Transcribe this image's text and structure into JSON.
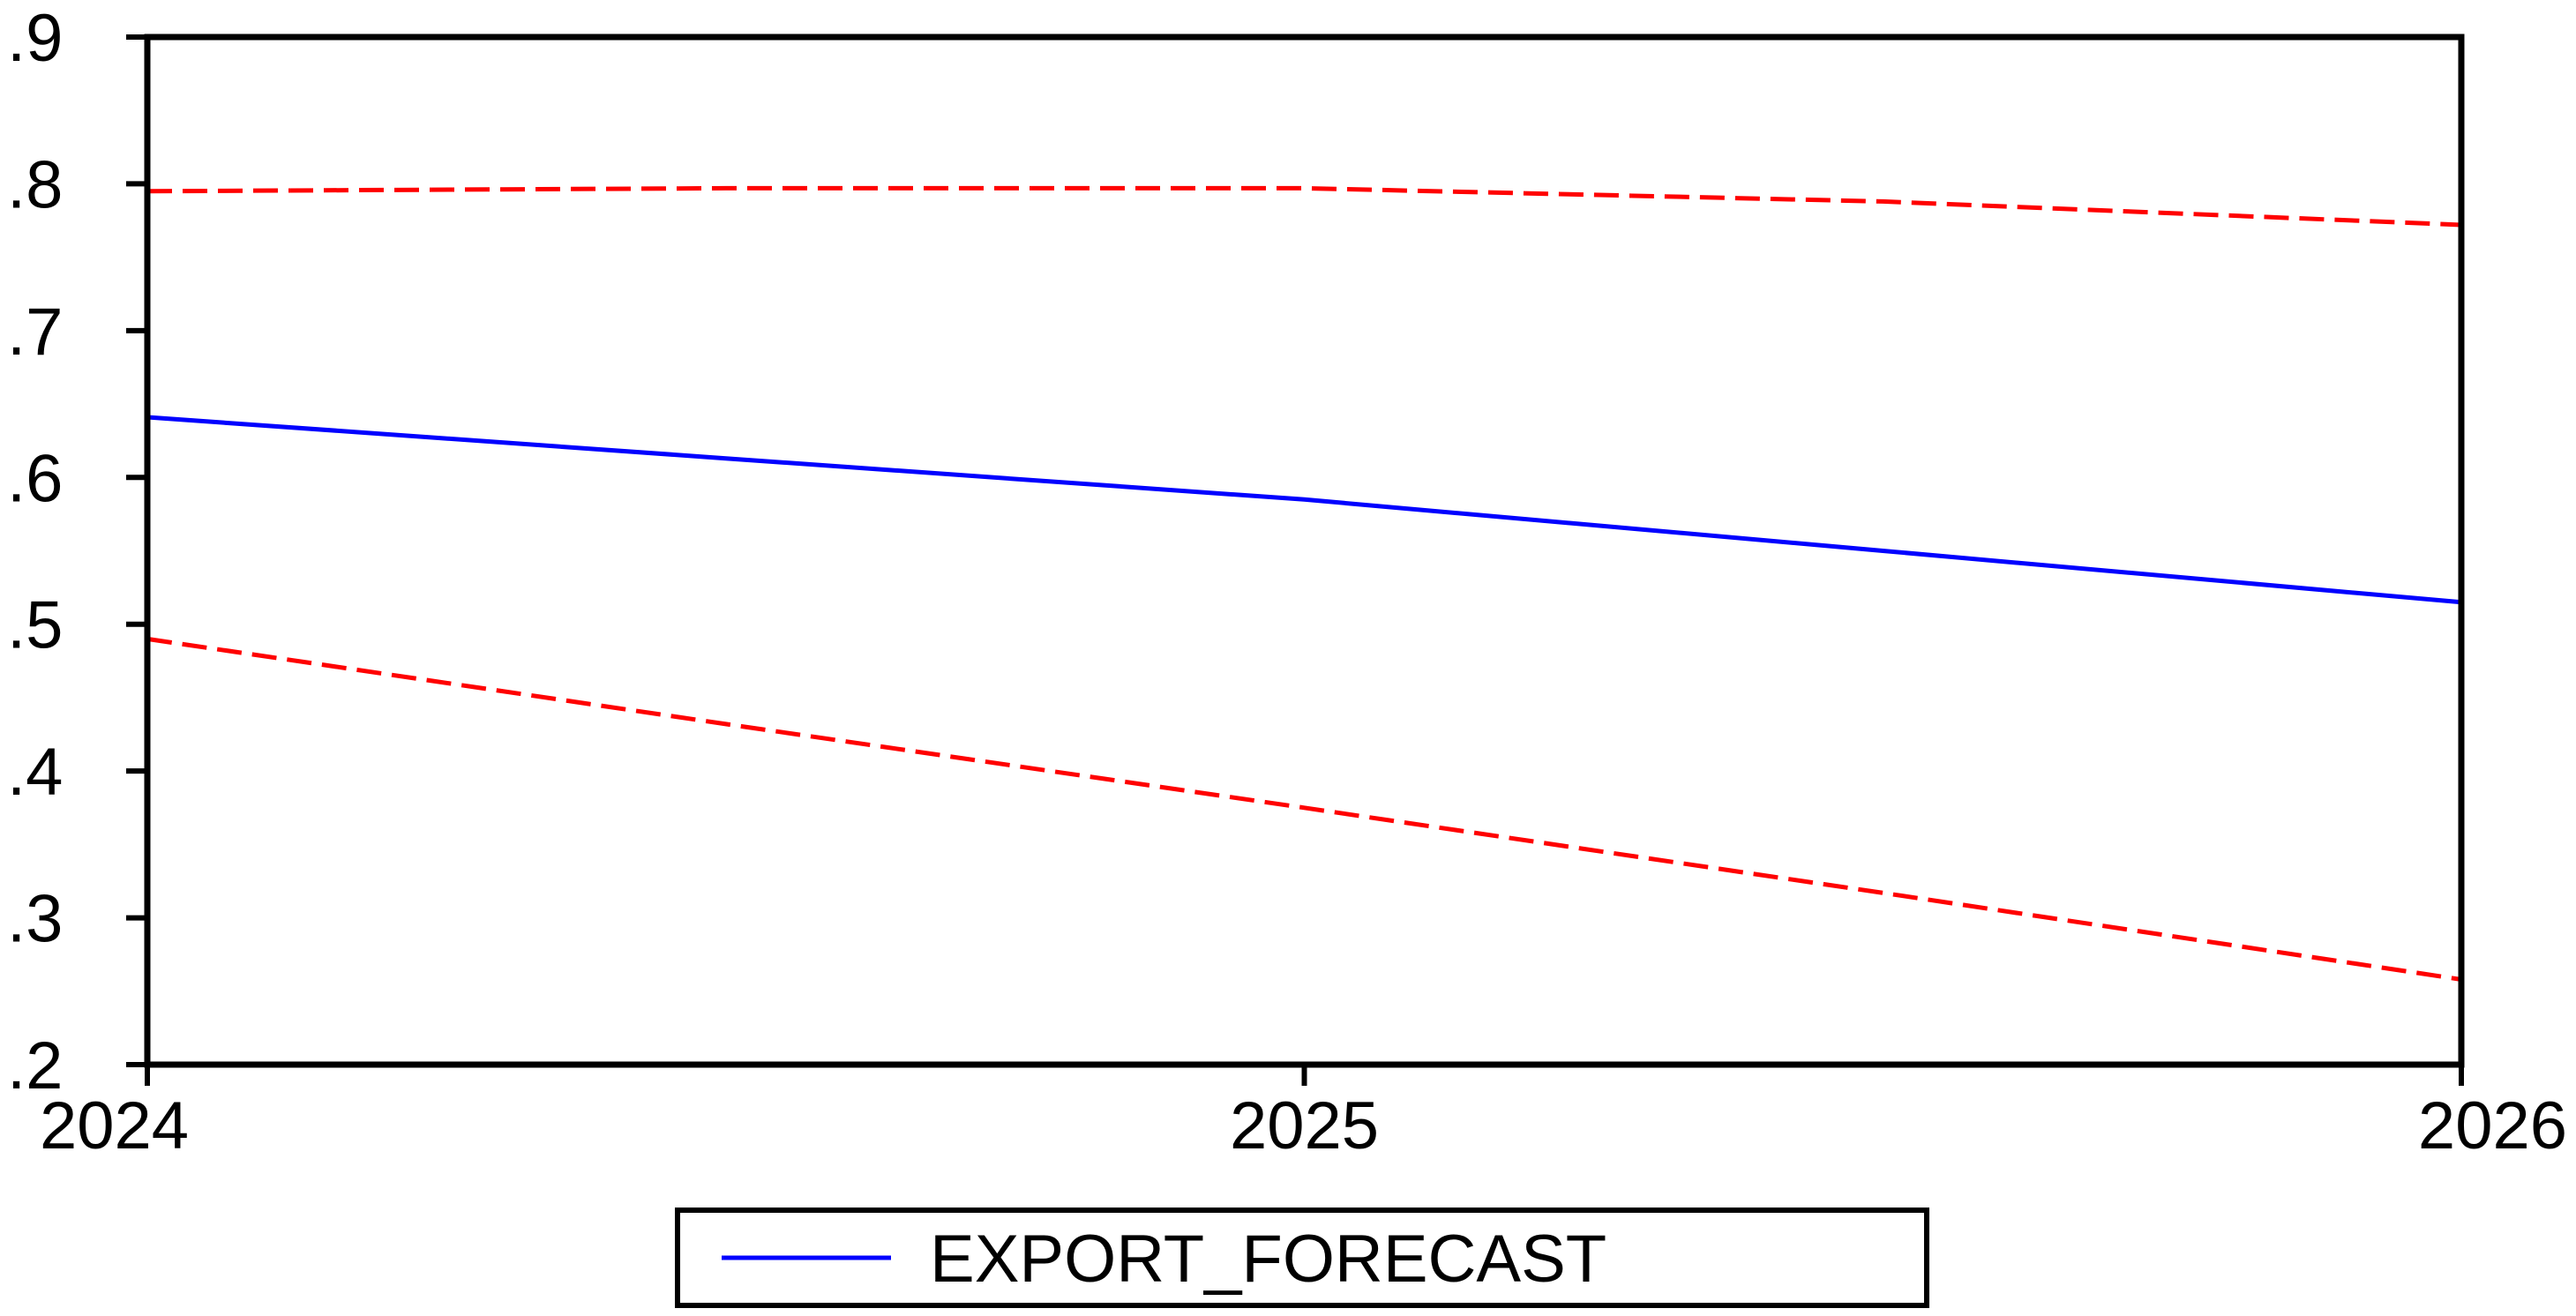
{
  "chart_data": {
    "type": "line",
    "x": [
      2024,
      2024.5,
      2025,
      2025.5,
      2026
    ],
    "x_tick_labels": [
      "2024",
      "2025",
      "2026"
    ],
    "x_ticks": [
      2024,
      2025,
      2026
    ],
    "xlim": [
      2024,
      2026
    ],
    "y_tick_labels": [
      ".2",
      ".3",
      ".4",
      ".5",
      ".6",
      ".7",
      ".8",
      ".9"
    ],
    "y_ticks": [
      0.2,
      0.3,
      0.4,
      0.5,
      0.6,
      0.7,
      0.8,
      0.9
    ],
    "ylim": [
      0.2,
      0.9
    ],
    "grid": false,
    "legend_position": "bottom-center",
    "series": [
      {
        "name": "EXPORT_FORECAST",
        "values": [
          0.641,
          0.613,
          0.585,
          0.55,
          0.515
        ],
        "color": "#0000ff",
        "style": "solid",
        "in_legend": true
      },
      {
        "values": [
          0.795,
          0.797,
          0.797,
          0.788,
          0.772
        ],
        "color": "#ff0000",
        "style": "dashed",
        "in_legend": false
      },
      {
        "values": [
          0.49,
          0.432,
          0.375,
          0.317,
          0.258
        ],
        "color": "#ff0000",
        "style": "dashed",
        "in_legend": false
      }
    ]
  }
}
